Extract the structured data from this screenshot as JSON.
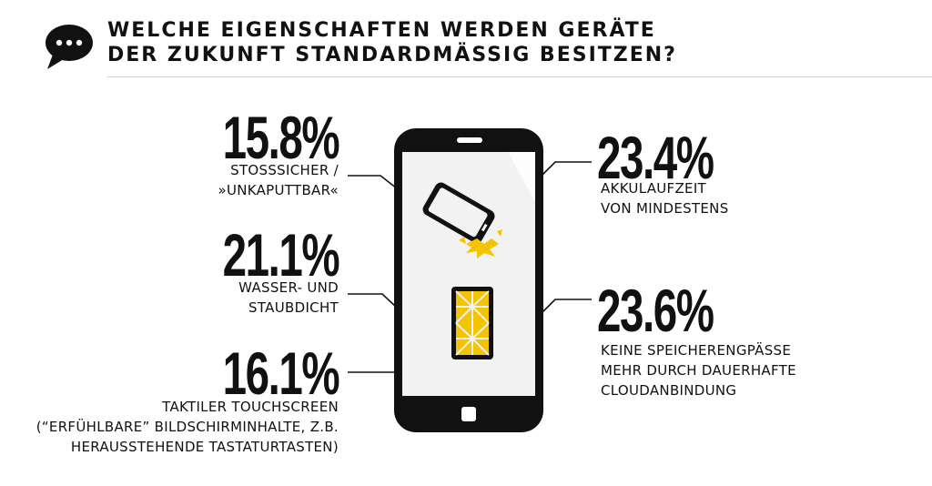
{
  "header": {
    "title_line1": "WELCHE EIGENSCHAFTEN WERDEN GERÄTE",
    "title_line2": "DER ZUKUNFT STANDARDMÄSSIG BESITZEN?",
    "icon": "speech-bubble-icon"
  },
  "chart_data": {
    "type": "bar",
    "title": "WELCHE EIGENSCHAFTEN WERDEN GERÄTE DER ZUKUNFT STANDARDMÄSSIG BESITZEN?",
    "unit": "%",
    "items": [
      {
        "value_label": "15.8%",
        "value": 15.8,
        "label_line1": "STOSSSICHER /",
        "label_line2": "»UNKAPUTTBAR«"
      },
      {
        "value_label": "21.1%",
        "value": 21.1,
        "label_line1": "WASSER- UND",
        "label_line2": "STAUBDICHT"
      },
      {
        "value_label": "16.1%",
        "value": 16.1,
        "label_line1": "TAKTILER TOUCHSCREEN",
        "label_line2": "(“ERFÜHLBARE” BILDSCHIRMINHALTE, Z.B.",
        "label_line3": "HERAUSSTEHENDE TASTATURTASTEN)"
      },
      {
        "value_label": "23.4%",
        "value": 23.4,
        "label_line1": "AKKULAUFZEIT",
        "label_line2": "VON MINDESTENS"
      },
      {
        "value_label": "23.6%",
        "value": 23.6,
        "label_line1": "KEINE SPEICHERENGPÄSSE",
        "label_line2": "MEHR DURCH DAUERHAFTE",
        "label_line3": "CLOUDANBINDUNG"
      }
    ]
  },
  "colors": {
    "text": "#111111",
    "accent_yellow": "#f5c400",
    "phone_body": "#111111",
    "screen": "#f2f2f2"
  },
  "illustrations": [
    "smartphone-icon",
    "dropped-phone-icon",
    "impact-burst-icon",
    "battery-icon"
  ]
}
